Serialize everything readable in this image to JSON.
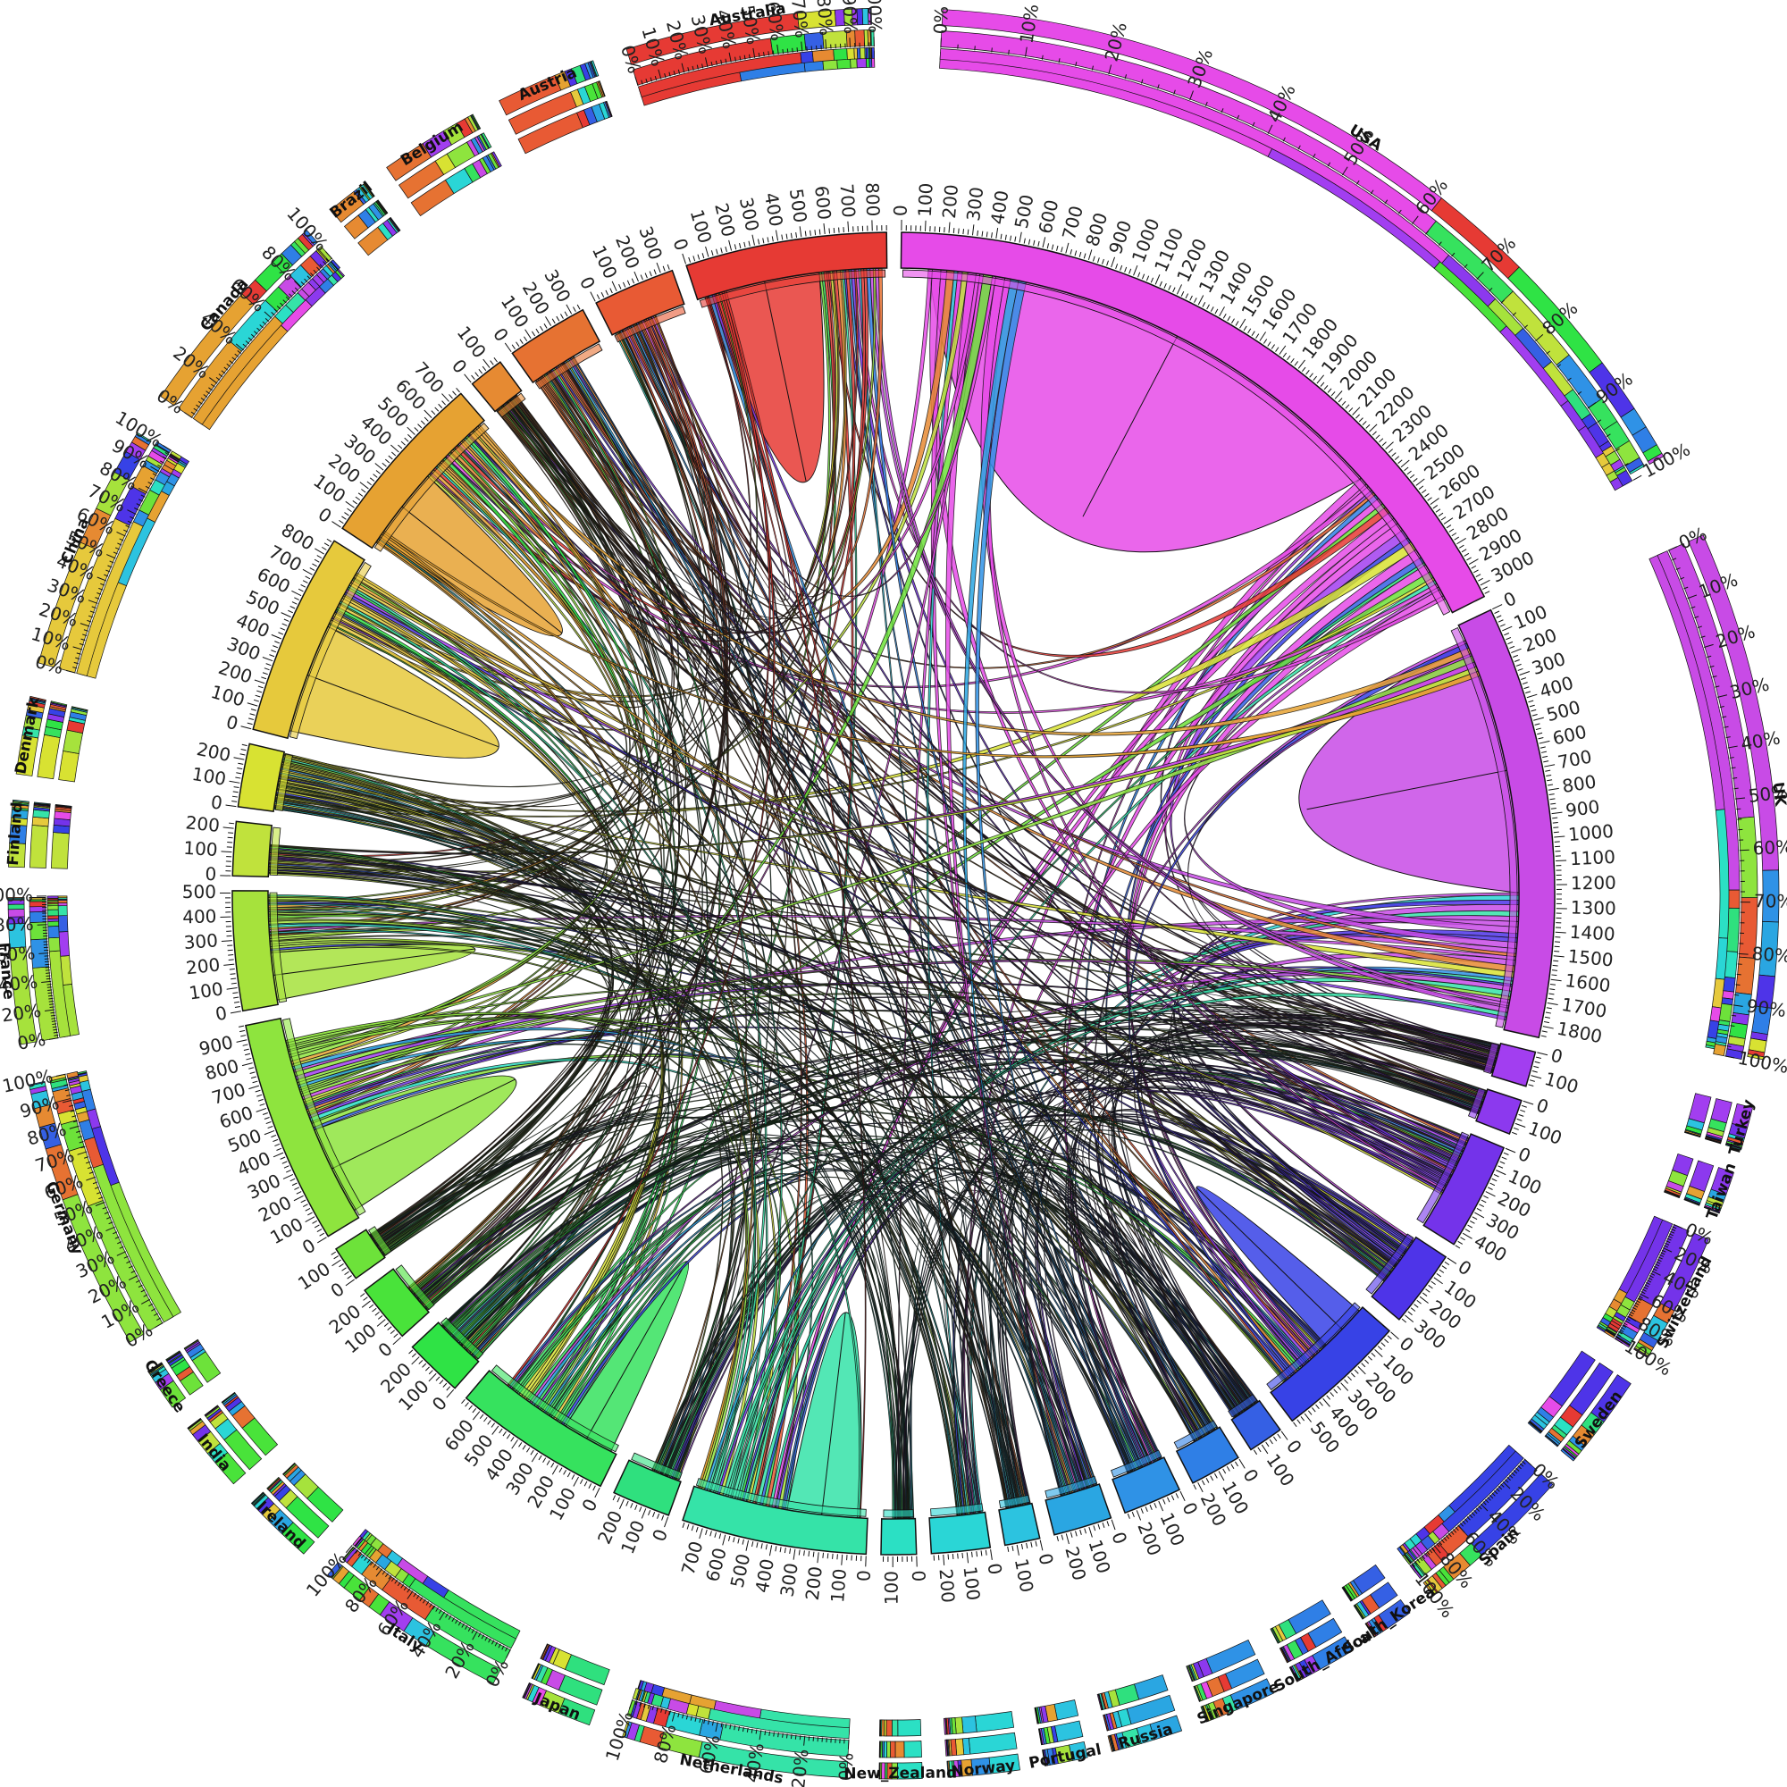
{
  "chart_data": {
    "type": "chord",
    "title": "",
    "segments": [
      {
        "name": "USA",
        "total": 3050,
        "color": "#e64be8",
        "ticks": [
          0,
          100,
          200,
          300,
          400,
          500,
          600,
          700,
          800,
          900,
          1000,
          1100,
          1200,
          1300,
          1400,
          1500,
          1600,
          1700,
          1800,
          1900,
          2000,
          2100,
          2200,
          2300,
          2400,
          2500,
          2600,
          2700,
          2800,
          2900,
          3000
        ],
        "pct_ticks": [
          "0%",
          "10%",
          "20%",
          "30%",
          "40%",
          "50%",
          "60%",
          "70%",
          "80%",
          "90%",
          "100%"
        ]
      },
      {
        "name": "UK",
        "total": 1850,
        "color": "#c84be6",
        "ticks": [
          0,
          100,
          200,
          300,
          400,
          500,
          600,
          700,
          800,
          900,
          1000,
          1100,
          1200,
          1300,
          1400,
          1500,
          1600,
          1700,
          1800
        ],
        "pct_ticks": [
          "0%",
          "10%",
          "20%",
          "30%",
          "40%",
          "50%",
          "60%",
          "70%",
          "80%",
          "90%",
          "100%"
        ]
      },
      {
        "name": "Turkey",
        "total": 150,
        "color": "#a23ef0",
        "ticks": [
          0,
          100
        ]
      },
      {
        "name": "Taiwan",
        "total": 150,
        "color": "#8c39ee",
        "ticks": [
          0,
          100
        ]
      },
      {
        "name": "Switzerland",
        "total": 460,
        "color": "#7433ea",
        "ticks": [
          0,
          100,
          200,
          300,
          400
        ],
        "pct_ticks": [
          "0%",
          "20%",
          "40%",
          "60%",
          "80%",
          "100%"
        ]
      },
      {
        "name": "Sweden",
        "total": 330,
        "color": "#4e34e8",
        "ticks": [
          0,
          100,
          200,
          300
        ]
      },
      {
        "name": "Spain",
        "total": 560,
        "color": "#3742e6",
        "ticks": [
          0,
          100,
          200,
          300,
          400,
          500
        ],
        "pct_ticks": [
          "0%",
          "20%",
          "40%",
          "60%",
          "80%",
          "100%"
        ]
      },
      {
        "name": "South_Korea",
        "total": 150,
        "color": "#3560e4",
        "ticks": [
          0,
          100
        ]
      },
      {
        "name": "South_Africa",
        "total": 220,
        "color": "#2f7fe6",
        "ticks": [
          0,
          100,
          200
        ]
      },
      {
        "name": "Singapore",
        "total": 250,
        "color": "#2f92e6",
        "ticks": [
          0,
          100,
          200
        ]
      },
      {
        "name": "Russia",
        "total": 250,
        "color": "#2aa6e2",
        "ticks": [
          0,
          100,
          200
        ]
      },
      {
        "name": "Portugal",
        "total": 150,
        "color": "#2cc3e0",
        "ticks": [
          0,
          100
        ]
      },
      {
        "name": "Norway",
        "total": 250,
        "color": "#2ad6d6",
        "ticks": [
          0,
          100,
          200
        ]
      },
      {
        "name": "New_Zealand",
        "total": 150,
        "color": "#2be0c4",
        "ticks": [
          0,
          100
        ]
      },
      {
        "name": "Netherlands",
        "total": 790,
        "color": "#35e3a8",
        "ticks": [
          0,
          100,
          200,
          300,
          400,
          500,
          600,
          700
        ],
        "pct_ticks": [
          "0%",
          "20%",
          "40%",
          "60%",
          "80%",
          "100%"
        ]
      },
      {
        "name": "Japan",
        "total": 250,
        "color": "#2fe07e",
        "ticks": [
          0,
          100,
          200
        ]
      },
      {
        "name": "Italy",
        "total": 680,
        "color": "#36e25e",
        "ticks": [
          0,
          100,
          200,
          300,
          400,
          500,
          600
        ],
        "pct_ticks": [
          "0%",
          "20%",
          "40%",
          "60%",
          "80%",
          "100%"
        ]
      },
      {
        "name": "Ireland",
        "total": 250,
        "color": "#2fe345",
        "ticks": [
          0,
          100,
          200
        ]
      },
      {
        "name": "India",
        "total": 250,
        "color": "#49e33a",
        "ticks": [
          0,
          100,
          200
        ]
      },
      {
        "name": "Greece",
        "total": 150,
        "color": "#6de23a",
        "ticks": [
          0,
          100
        ]
      },
      {
        "name": "Germany",
        "total": 960,
        "color": "#8ee43e",
        "ticks": [
          0,
          100,
          200,
          300,
          400,
          500,
          600,
          700,
          800,
          900
        ],
        "pct_ticks": [
          "0%",
          "10%",
          "20%",
          "30%",
          "40%",
          "50%",
          "60%",
          "70%",
          "80%",
          "90%",
          "100%"
        ]
      },
      {
        "name": "France",
        "total": 510,
        "color": "#a6e23c",
        "ticks": [
          0,
          100,
          200,
          300,
          400,
          500
        ],
        "pct_ticks": [
          "0%",
          "20%",
          "40%",
          "60%",
          "80%",
          "100%"
        ]
      },
      {
        "name": "Finland",
        "total": 230,
        "color": "#c0e23c",
        "ticks": [
          0,
          100,
          200
        ]
      },
      {
        "name": "Denmark",
        "total": 270,
        "color": "#d8e232",
        "ticks": [
          0,
          100,
          200
        ]
      },
      {
        "name": "China",
        "total": 870,
        "color": "#e6c93c",
        "ticks": [
          0,
          100,
          200,
          300,
          400,
          500,
          600,
          700,
          800
        ],
        "pct_ticks": [
          "0%",
          "10%",
          "20%",
          "30%",
          "40%",
          "50%",
          "60%",
          "70%",
          "80%",
          "90%",
          "100%"
        ]
      },
      {
        "name": "Canada",
        "total": 760,
        "color": "#e6a232",
        "ticks": [
          0,
          100,
          200,
          300,
          400,
          500,
          600,
          700
        ],
        "pct_ticks": [
          "0%",
          "20%",
          "40%",
          "60%",
          "80%",
          "100%"
        ]
      },
      {
        "name": "Brazil",
        "total": 150,
        "color": "#e68a32",
        "ticks": [
          0,
          100
        ]
      },
      {
        "name": "Belgium",
        "total": 350,
        "color": "#e67232",
        "ticks": [
          0,
          100,
          200,
          300
        ]
      },
      {
        "name": "Austria",
        "total": 350,
        "color": "#e85a34",
        "ticks": [
          0,
          100,
          200,
          300
        ]
      },
      {
        "name": "Australia",
        "total": 860,
        "color": "#e63a34",
        "ticks": [
          0,
          100,
          200,
          300,
          400,
          500,
          600,
          700,
          800
        ],
        "pct_ticks": [
          "0%",
          "10%",
          "20%",
          "30%",
          "40%",
          "50%",
          "60%",
          "70%",
          "80%",
          "90%",
          "100%"
        ]
      }
    ]
  }
}
